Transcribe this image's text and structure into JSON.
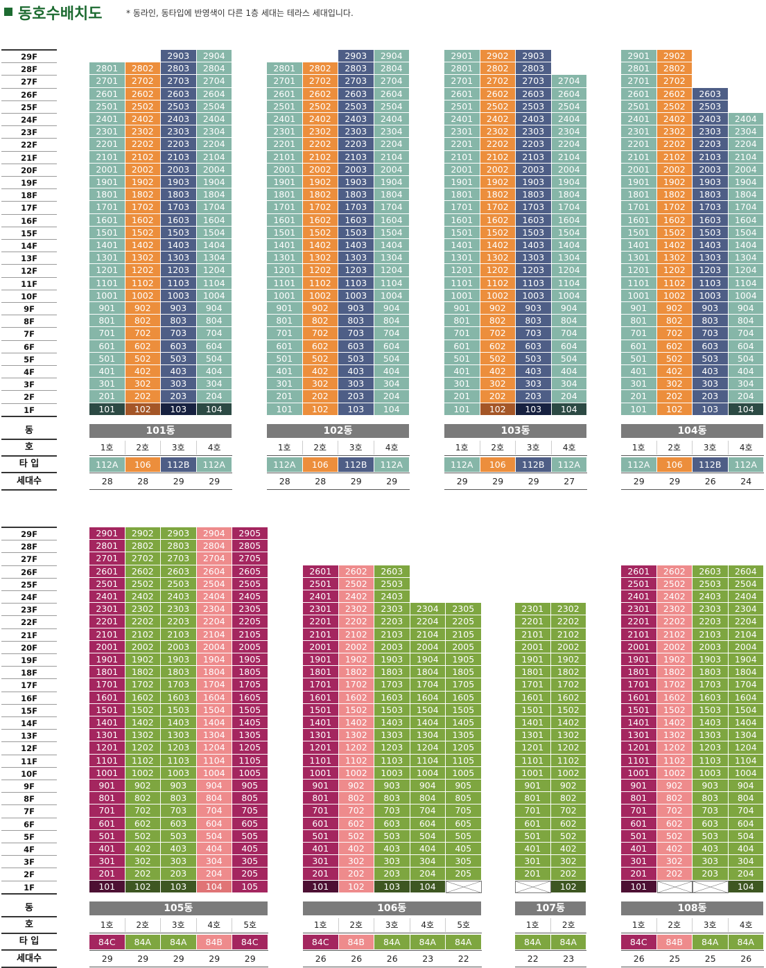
{
  "header": {
    "title": "동호수배치도",
    "note": "* 동라인, 동타입에 반영색이 다른 1층 세대는 테라스 세대입니다."
  },
  "row_labels": {
    "dong": "동",
    "ho": "호",
    "type": "타 입",
    "count": "세대수"
  },
  "colors": {
    "teal": "#86b6a8",
    "orange": "#ec8e3c",
    "navy": "#4e5e86",
    "teal_dark": "#2c4a44",
    "orange_dark": "#a45627",
    "navy_dark": "#172140",
    "magenta": "#a4265f",
    "green": "#7ea640",
    "pink": "#ee8b8c",
    "magenta_dark": "#4d1033",
    "green_dark": "#3e5722",
    "pink_dark": "#e07476",
    "dong_bar": "#7b7b7b"
  },
  "sections": [
    {
      "floors": [
        "29F",
        "28F",
        "27F",
        "26F",
        "25F",
        "24F",
        "23F",
        "22F",
        "21F",
        "20F",
        "19F",
        "18F",
        "17F",
        "16F",
        "15F",
        "14F",
        "13F",
        "12F",
        "11F",
        "10F",
        "9F",
        "8F",
        "7F",
        "6F",
        "5F",
        "4F",
        "3F",
        "2F",
        "1F"
      ],
      "buildings": [
        {
          "name": "101동",
          "units": [
            {
              "ho": "1호",
              "type": "112A",
              "count": "28",
              "top": 28,
              "color": "teal",
              "terrace": "teal_dark"
            },
            {
              "ho": "2호",
              "type": "106",
              "count": "28",
              "top": 28,
              "color": "orange",
              "terrace": "orange_dark"
            },
            {
              "ho": "3호",
              "type": "112B",
              "count": "29",
              "top": 29,
              "color": "navy",
              "terrace": "navy_dark"
            },
            {
              "ho": "4호",
              "type": "112A",
              "count": "29",
              "top": 29,
              "color": "teal",
              "terrace": "teal_dark"
            }
          ]
        },
        {
          "name": "102동",
          "units": [
            {
              "ho": "1호",
              "type": "112A",
              "count": "28",
              "top": 28,
              "color": "teal",
              "terrace": "teal"
            },
            {
              "ho": "2호",
              "type": "106",
              "count": "28",
              "top": 28,
              "color": "orange",
              "terrace": "orange"
            },
            {
              "ho": "3호",
              "type": "112B",
              "count": "29",
              "top": 29,
              "color": "navy",
              "terrace": "navy"
            },
            {
              "ho": "4호",
              "type": "112A",
              "count": "29",
              "top": 29,
              "color": "teal",
              "terrace": "teal"
            }
          ]
        },
        {
          "name": "103동",
          "units": [
            {
              "ho": "1호",
              "type": "112A",
              "count": "29",
              "top": 29,
              "color": "teal",
              "terrace": "teal"
            },
            {
              "ho": "2호",
              "type": "106",
              "count": "29",
              "top": 29,
              "color": "orange",
              "terrace": "orange_dark"
            },
            {
              "ho": "3호",
              "type": "112B",
              "count": "29",
              "top": 29,
              "color": "navy",
              "terrace": "navy_dark"
            },
            {
              "ho": "4호",
              "type": "112A",
              "count": "27",
              "top": 27,
              "color": "teal",
              "terrace": "teal_dark"
            }
          ]
        },
        {
          "name": "104동",
          "units": [
            {
              "ho": "1호",
              "type": "112A",
              "count": "29",
              "top": 29,
              "color": "teal",
              "terrace": "teal"
            },
            {
              "ho": "2호",
              "type": "106",
              "count": "29",
              "top": 29,
              "color": "orange",
              "terrace": "orange"
            },
            {
              "ho": "3호",
              "type": "112B",
              "count": "26",
              "top": 26,
              "color": "navy",
              "terrace": "navy"
            },
            {
              "ho": "4호",
              "type": "112A",
              "count": "24",
              "top": 24,
              "color": "teal",
              "terrace": "teal_dark"
            }
          ]
        }
      ]
    },
    {
      "floors": [
        "29F",
        "28F",
        "27F",
        "26F",
        "25F",
        "24F",
        "23F",
        "22F",
        "21F",
        "20F",
        "19F",
        "18F",
        "17F",
        "16F",
        "15F",
        "14F",
        "13F",
        "12F",
        "11F",
        "10F",
        "9F",
        "8F",
        "7F",
        "6F",
        "5F",
        "4F",
        "3F",
        "2F",
        "1F"
      ],
      "buildings": [
        {
          "name": "105동",
          "units": [
            {
              "ho": "1호",
              "type": "84C",
              "count": "29",
              "top": 29,
              "color": "magenta",
              "terrace": "magenta_dark"
            },
            {
              "ho": "2호",
              "type": "84A",
              "count": "29",
              "top": 29,
              "color": "green",
              "terrace": "green_dark"
            },
            {
              "ho": "3호",
              "type": "84A",
              "count": "29",
              "top": 29,
              "color": "green",
              "terrace": "green_dark"
            },
            {
              "ho": "4호",
              "type": "84B",
              "count": "29",
              "top": 29,
              "color": "pink",
              "terrace": "pink_dark"
            },
            {
              "ho": "5호",
              "type": "84C",
              "count": "29",
              "top": 29,
              "color": "magenta",
              "terrace": "magenta"
            }
          ]
        },
        {
          "name": "106동",
          "units": [
            {
              "ho": "1호",
              "type": "84C",
              "count": "26",
              "top": 26,
              "color": "magenta",
              "terrace": "magenta_dark"
            },
            {
              "ho": "2호",
              "type": "84B",
              "count": "26",
              "top": 26,
              "color": "pink",
              "terrace": "pink"
            },
            {
              "ho": "3호",
              "type": "84A",
              "count": "26",
              "top": 26,
              "color": "green",
              "terrace": "green_dark"
            },
            {
              "ho": "4호",
              "type": "84A",
              "count": "23",
              "top": 23,
              "color": "green",
              "terrace": "green_dark"
            },
            {
              "ho": "5호",
              "type": "84A",
              "count": "22",
              "top": 23,
              "color": "green",
              "terrace": "empty"
            }
          ]
        },
        {
          "name": "107동",
          "units": [
            {
              "ho": "1호",
              "type": "84A",
              "count": "22",
              "top": 23,
              "color": "green",
              "terrace": "empty"
            },
            {
              "ho": "2호",
              "type": "84A",
              "count": "23",
              "top": 23,
              "color": "green",
              "terrace": "green_dark"
            }
          ]
        },
        {
          "name": "108동",
          "units": [
            {
              "ho": "1호",
              "type": "84C",
              "count": "26",
              "top": 26,
              "color": "magenta",
              "terrace": "magenta_dark"
            },
            {
              "ho": "2호",
              "type": "84B",
              "count": "25",
              "top": 26,
              "color": "pink",
              "terrace": "empty"
            },
            {
              "ho": "3호",
              "type": "84A",
              "count": "25",
              "top": 26,
              "color": "green",
              "terrace": "empty"
            },
            {
              "ho": "4호",
              "type": "84A",
              "count": "26",
              "top": 26,
              "color": "green",
              "terrace": "green_dark"
            }
          ]
        }
      ]
    }
  ]
}
